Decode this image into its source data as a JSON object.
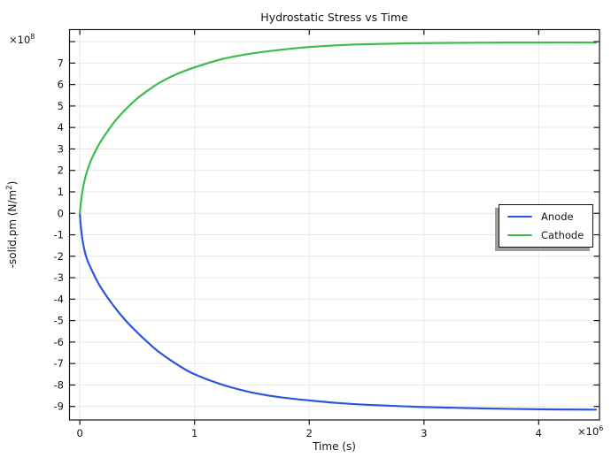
{
  "chart_data": {
    "type": "line",
    "title": "Hydrostatic Stress vs Time",
    "xlabel": "Time (s)",
    "ylabel": "-solid.pm (N/m²)",
    "ylabel_parts": {
      "pre": "-solid.pm (N/m",
      "sup": "2",
      "post": ")"
    },
    "x_scale": {
      "base": "×10",
      "exp": "6"
    },
    "y_scale": {
      "base": "×10",
      "exp": "8"
    },
    "x_values_unit": "×10⁶ s",
    "y_values_unit": "×10⁸ N/m²",
    "xlim": [
      -0.09,
      4.53
    ],
    "ylim": [
      -9.63,
      8.56
    ],
    "grid": true,
    "legend_position": "right-center",
    "x_ticks": {
      "values": [
        0,
        1,
        2,
        3,
        4
      ],
      "labels": [
        "0",
        "1",
        "2",
        "3",
        "4"
      ]
    },
    "y_ticks": {
      "values": [
        8,
        7,
        6,
        5,
        4,
        3,
        2,
        1,
        0,
        -1,
        -2,
        -3,
        -4,
        -5,
        -6,
        -7,
        -8,
        -9
      ],
      "labels": [
        "",
        "7",
        "6",
        "5",
        "4",
        "3",
        "2",
        "1",
        "0",
        "-1",
        "-2",
        "-3",
        "-4",
        "-5",
        "-6",
        "-7",
        "-8",
        "-9"
      ]
    },
    "x": [
      0,
      0.01,
      0.03,
      0.06,
      0.1,
      0.15,
      0.2,
      0.3,
      0.4,
      0.5,
      0.6,
      0.7,
      0.85,
      1.0,
      1.25,
      1.5,
      1.75,
      2.0,
      2.25,
      2.5,
      3.0,
      3.5,
      4.0,
      4.5
    ],
    "series": [
      {
        "name": "Anode",
        "color": "#2c55dd",
        "values": [
          0,
          -0.7,
          -1.45,
          -2.1,
          -2.6,
          -3.15,
          -3.6,
          -4.35,
          -5.0,
          -5.55,
          -6.05,
          -6.5,
          -7.05,
          -7.5,
          -8.0,
          -8.35,
          -8.57,
          -8.72,
          -8.84,
          -8.92,
          -9.03,
          -9.09,
          -9.13,
          -9.15
        ]
      },
      {
        "name": "Cathode",
        "color": "#3dbb4f",
        "values": [
          0,
          0.55,
          1.25,
          1.9,
          2.5,
          3.05,
          3.5,
          4.25,
          4.85,
          5.35,
          5.75,
          6.1,
          6.5,
          6.8,
          7.2,
          7.45,
          7.62,
          7.75,
          7.83,
          7.88,
          7.93,
          7.95,
          7.96,
          7.96
        ]
      }
    ]
  },
  "colors": {
    "background": "#ffffff",
    "grid": "#e9e9e9",
    "frame": "#141414",
    "text": "#151515",
    "legend_shadow": "#9e9e9e"
  }
}
